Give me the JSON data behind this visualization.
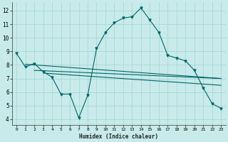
{
  "xlabel": "Humidex (Indice chaleur)",
  "bg_color": "#c8eaea",
  "line_color": "#006666",
  "grid_color": "#aad8d8",
  "xlim": [
    -0.5,
    23.5
  ],
  "ylim": [
    3.6,
    12.6
  ],
  "xticks": [
    0,
    1,
    2,
    3,
    4,
    5,
    6,
    7,
    8,
    9,
    10,
    11,
    12,
    13,
    14,
    15,
    16,
    17,
    18,
    19,
    20,
    21,
    22,
    23
  ],
  "yticks": [
    4,
    5,
    6,
    7,
    8,
    9,
    10,
    11,
    12
  ],
  "line1_x": [
    0,
    1,
    2,
    3,
    4,
    5,
    6,
    7,
    8,
    9,
    10,
    11,
    12,
    13,
    14,
    15,
    16,
    17,
    18,
    19,
    20,
    21,
    22,
    23
  ],
  "line1_y": [
    8.85,
    7.85,
    8.1,
    7.5,
    7.1,
    5.85,
    5.85,
    4.1,
    5.75,
    9.2,
    10.4,
    11.1,
    11.45,
    11.55,
    12.2,
    11.3,
    10.4,
    8.7,
    8.5,
    8.3,
    7.6,
    6.3,
    5.15,
    4.8
  ],
  "line2_x": [
    1,
    23
  ],
  "line2_y": [
    8.05,
    7.0
  ],
  "line3_x": [
    2,
    23
  ],
  "line3_y": [
    7.6,
    7.0
  ],
  "line4_x": [
    3,
    23
  ],
  "line4_y": [
    7.4,
    6.5
  ],
  "figsize": [
    3.2,
    2.0
  ],
  "dpi": 100
}
